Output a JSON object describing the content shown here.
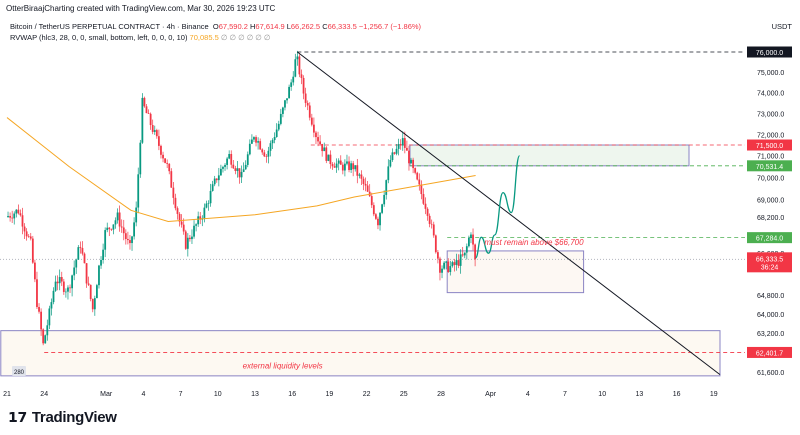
{
  "header": {
    "credit": "OtterBiraajCharting created with TradingView.com, Mar 30, 2026 19:23 UTC",
    "symbol": "Bitcoin / TetherUS PERPETUAL CONTRACT · 4h · Binance",
    "o_label": "O",
    "o": "67,590.2",
    "h_label": "H",
    "h": "67,614.9",
    "l_label": "L",
    "l": "66,262.5",
    "c_label": "C",
    "c": "66,333.5",
    "change": "−1,256.7 (−1.86%)",
    "indicator": "RVWAP (hlc3, 28, 0, 0, small, bottom, left, 0, 0, 0, 10)",
    "indicator_value": "70,085.5",
    "indicator_extra": "∅ ∅ ∅ ∅ ∅ ∅",
    "currency": "USDT"
  },
  "brand": {
    "logo_mark": "17",
    "name": "TradingView"
  },
  "chart_data": {
    "type": "candlestick",
    "interval": "4h",
    "scale": "log",
    "grid": false,
    "ylim": [
      61000,
      76600
    ],
    "xlim": [
      "2026-02-20T12:00",
      "2026-04-21T00:00"
    ],
    "y_ticks": [
      "75,000.0",
      "74,000.0",
      "73,000.0",
      "72,000.0",
      "71,000.0",
      "70,000.0",
      "69,000.0",
      "68,200.0",
      "66,600.0",
      "64,800.0",
      "64,000.0",
      "63,200.0",
      "61,600.0"
    ],
    "y_tick_values": [
      75000,
      74000,
      73000,
      72000,
      71000,
      70000,
      69000,
      68200,
      66600,
      64800,
      64000,
      63200,
      61600
    ],
    "x_ticks": [
      [
        "21",
        "2026-02-21"
      ],
      [
        "24",
        "2026-02-24"
      ],
      [
        "Mar",
        "2026-03-01"
      ],
      [
        "4",
        "2026-03-04"
      ],
      [
        "7",
        "2026-03-07"
      ],
      [
        "10",
        "2026-03-10"
      ],
      [
        "13",
        "2026-03-13"
      ],
      [
        "16",
        "2026-03-16"
      ],
      [
        "19",
        "2026-03-19"
      ],
      [
        "22",
        "2026-03-22"
      ],
      [
        "25",
        "2026-03-25"
      ],
      [
        "28",
        "2026-03-28"
      ],
      [
        "Apr",
        "2026-04-01"
      ],
      [
        "4",
        "2026-04-04"
      ],
      [
        "7",
        "2026-04-07"
      ],
      [
        "10",
        "2026-04-10"
      ],
      [
        "13",
        "2026-04-13"
      ],
      [
        "16",
        "2026-04-16"
      ],
      [
        "19",
        "2026-04-19"
      ]
    ],
    "price_path": [
      [
        "2026-02-21T00:00",
        68200
      ],
      [
        "2026-02-22T00:00",
        68500
      ],
      [
        "2026-02-23T00:00",
        67000
      ],
      [
        "2026-02-23T12:00",
        64500
      ],
      [
        "2026-02-24T00:00",
        62700
      ],
      [
        "2026-02-24T12:00",
        64000
      ],
      [
        "2026-02-25T00:00",
        65500
      ],
      [
        "2026-02-26T00:00",
        65000
      ],
      [
        "2026-02-27T00:00",
        67000
      ],
      [
        "2026-02-27T12:00",
        65500
      ],
      [
        "2026-02-28T00:00",
        64200
      ],
      [
        "2026-02-28T12:00",
        66000
      ],
      [
        "2026-03-01T00:00",
        67500
      ],
      [
        "2026-03-02T00:00",
        68200
      ],
      [
        "2026-03-03T00:00",
        66800
      ],
      [
        "2026-03-03T12:00",
        68500
      ],
      [
        "2026-03-04T00:00",
        73500
      ],
      [
        "2026-03-05T00:00",
        72000
      ],
      [
        "2026-03-06T00:00",
        70500
      ],
      [
        "2026-03-07T00:00",
        68000
      ],
      [
        "2026-03-07T12:00",
        67000
      ],
      [
        "2026-03-08T00:00",
        67500
      ],
      [
        "2026-03-09T00:00",
        68500
      ],
      [
        "2026-03-10T00:00",
        70000
      ],
      [
        "2026-03-11T00:00",
        71000
      ],
      [
        "2026-03-12T00:00",
        70000
      ],
      [
        "2026-03-13T00:00",
        72000
      ],
      [
        "2026-03-14T00:00",
        71000
      ],
      [
        "2026-03-15T00:00",
        72500
      ],
      [
        "2026-03-16T00:00",
        74500
      ],
      [
        "2026-03-16T10:00",
        75800
      ],
      [
        "2026-03-17T00:00",
        74000
      ],
      [
        "2026-03-18T00:00",
        72000
      ],
      [
        "2026-03-19T00:00",
        70800
      ],
      [
        "2026-03-20T00:00",
        70500
      ],
      [
        "2026-03-21T00:00",
        70500
      ],
      [
        "2026-03-22T00:00",
        69500
      ],
      [
        "2026-03-23T00:00",
        68000
      ],
      [
        "2026-03-24T00:00",
        70800
      ],
      [
        "2026-03-25T00:00",
        71700
      ],
      [
        "2026-03-26T00:00",
        70000
      ],
      [
        "2026-03-27T00:00",
        68500
      ],
      [
        "2026-03-28T00:00",
        66000
      ],
      [
        "2026-03-29T00:00",
        66000
      ],
      [
        "2026-03-30T00:00",
        66500
      ],
      [
        "2026-03-30T12:00",
        67600
      ],
      [
        "2026-03-30T19:00",
        66333.5
      ]
    ],
    "rvwap": [
      [
        "2026-02-21T00:00",
        72800
      ],
      [
        "2026-02-26T00:00",
        70500
      ],
      [
        "2026-03-03T00:00",
        68500
      ],
      [
        "2026-03-06T00:00",
        68000
      ],
      [
        "2026-03-13T00:00",
        68300
      ],
      [
        "2026-03-18T00:00",
        68700
      ],
      [
        "2026-03-21T00:00",
        69100
      ],
      [
        "2026-03-25T00:00",
        69500
      ],
      [
        "2026-03-30T19:00",
        70085.5
      ]
    ],
    "colors": {
      "up": "#089981",
      "down": "#f23645",
      "rvwap": "#f5a623",
      "projection": "#089981",
      "trendline": "#131722"
    },
    "price_labels": [
      {
        "text": "76,000.0",
        "value": 76000,
        "bg": "#131722",
        "line": "#131722",
        "from": "2026-03-16T10:00"
      },
      {
        "text": "71,500.0",
        "value": 71500,
        "bg": "#f23645",
        "line": "#f23645",
        "from": "2026-03-17T12:00"
      },
      {
        "text": "70,531.4",
        "value": 70531.4,
        "bg": "#4caf50",
        "line": "#4caf50",
        "from": "2026-03-25T12:00"
      },
      {
        "text": "67,284.0",
        "value": 67284,
        "bg": "#4caf50",
        "line": "#4caf50",
        "from": "2026-03-28T12:00"
      },
      {
        "text": "62,401.7",
        "value": 62401.7,
        "bg": "#f23645",
        "line": "#f23645",
        "from": "2026-02-24T00:00"
      }
    ],
    "last_price": {
      "text": "66,333.5",
      "countdown": "36:24",
      "value": 66333.5
    },
    "trendline": [
      [
        "2026-03-16T10:00",
        76000
      ],
      [
        "2026-04-19T12:00",
        61500
      ]
    ],
    "zones": [
      {
        "from": "2026-03-25T12:00",
        "to": "2026-04-17T00:00",
        "top": 71500,
        "bottom": 70531.4,
        "fill": "#eef6ee",
        "stroke": "#8a84c4"
      },
      {
        "from": "2026-03-28T12:00",
        "to": "2026-04-08T12:00",
        "top": 66700,
        "bottom": 64900,
        "fill": "#fdf8f3",
        "stroke": "#8a84c4"
      },
      {
        "from": "2026-02-20T12:00",
        "to": "2026-04-19T12:00",
        "top": 63300,
        "bottom": 61450,
        "fill": "#fdf9f2",
        "stroke": "#8a84c4"
      }
    ],
    "projection": [
      [
        "2026-03-30T19:00",
        66400
      ],
      [
        "2026-03-31T06:00",
        67300
      ],
      [
        "2026-03-31T20:00",
        66600
      ],
      [
        "2026-04-01T08:00",
        67400
      ],
      [
        "2026-04-02T00:00",
        69300
      ],
      [
        "2026-04-02T16:00",
        68400
      ],
      [
        "2026-04-03T08:00",
        71000
      ]
    ],
    "annotations": [
      {
        "text": "must remain above $66,700",
        "date": "2026-03-31T12:00",
        "price": 66950
      },
      {
        "text": "external liquidity levels",
        "date": "2026-03-12T00:00",
        "price": 61750
      }
    ],
    "badge": "280"
  }
}
